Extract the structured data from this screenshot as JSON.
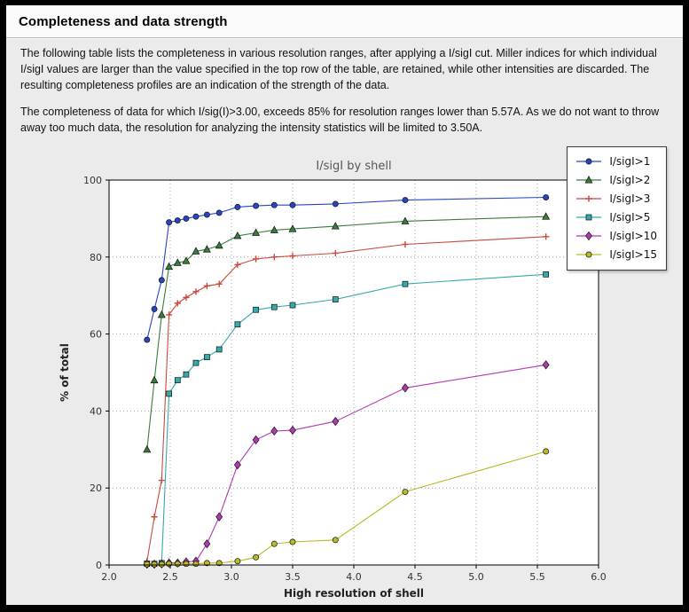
{
  "header": {
    "title": "Completeness and data strength"
  },
  "paragraphs": [
    "The following table lists the completeness in various resolution ranges, after applying a I/sigI cut. Miller indices for which individual I/sigI values are larger than the value specified in the top row of the table, are retained, while other intensities are discarded. The resulting completeness profiles are an indication of the strength of the data.",
    "The completeness of data for which I/sig(I)>3.00, exceeds  85% for resolution ranges lower than 5.57A. As we do not want to throw away too much data, the resolution for analyzing the intensity statistics will be limited to 3.50A."
  ],
  "colors": {
    "window_bg": "#ebebeb",
    "plot_bg": "#ffffff",
    "grid": "#8f8f8f",
    "frame_border": "#000000"
  },
  "chart_data": {
    "type": "line",
    "title": "I/sigI by shell",
    "xlabel": "High resolution of shell",
    "ylabel": "% of total",
    "xlim": [
      2.0,
      6.0
    ],
    "ylim": [
      0,
      100
    ],
    "grid": true,
    "legend_position": "upper right",
    "x_tick_values": [
      2.0,
      2.5,
      3.0,
      3.5,
      4.0,
      4.5,
      5.0,
      5.5,
      6.0
    ],
    "x_tick_labels": [
      "2.0",
      "2.5",
      "3.0",
      "3.5",
      "4.0",
      "4.5",
      "5.0",
      "5.5",
      "6.0"
    ],
    "y_tick_values": [
      0,
      20,
      40,
      60,
      80,
      100
    ],
    "y_tick_labels": [
      "0",
      "20",
      "40",
      "60",
      "80",
      "100"
    ],
    "x": [
      2.31,
      2.37,
      2.43,
      2.49,
      2.56,
      2.63,
      2.71,
      2.8,
      2.9,
      3.05,
      3.2,
      3.35,
      3.5,
      3.85,
      4.42,
      5.57
    ],
    "series": [
      {
        "name": "I/sigI>1",
        "color": "#2646c4",
        "marker": "circle",
        "values": [
          58.5,
          66.5,
          74,
          89,
          89.5,
          90,
          90.5,
          91,
          91.5,
          93,
          93.3,
          93.5,
          93.5,
          93.8,
          94.8,
          95.5
        ]
      },
      {
        "name": "I/sigI>2",
        "color": "#3a7d3a",
        "marker": "triangle",
        "values": [
          30,
          48,
          65,
          77.5,
          78.5,
          79,
          81.5,
          82,
          83,
          85.5,
          86.3,
          87,
          87.3,
          88,
          89.3,
          90.5
        ]
      },
      {
        "name": "I/sigI>3",
        "color": "#c9493b",
        "marker": "plus",
        "values": [
          1,
          12.5,
          22,
          65,
          68,
          69.5,
          71,
          72.5,
          73,
          78,
          79.5,
          80,
          80.3,
          81,
          83.3,
          85.3
        ]
      },
      {
        "name": "I/sigI>5",
        "color": "#35aaaa",
        "marker": "square",
        "values": [
          0.3,
          0.3,
          0.5,
          44.5,
          48,
          49.5,
          52.5,
          54,
          56,
          62.5,
          66.3,
          67,
          67.5,
          69,
          73,
          75.5
        ]
      },
      {
        "name": "I/sigI>10",
        "color": "#b338b3",
        "marker": "diamond",
        "values": [
          0.2,
          0.2,
          0.3,
          0.5,
          0.5,
          0.8,
          1,
          5.5,
          12.5,
          26,
          32.5,
          34.8,
          35,
          37.3,
          46,
          52
        ]
      },
      {
        "name": "I/sigI>15",
        "color": "#b9b929",
        "marker": "circle",
        "values": [
          0.2,
          0.2,
          0.2,
          0.3,
          0.3,
          0.3,
          0.3,
          0.5,
          0.5,
          1,
          2,
          5.5,
          6,
          6.5,
          19,
          29.5
        ]
      }
    ]
  }
}
